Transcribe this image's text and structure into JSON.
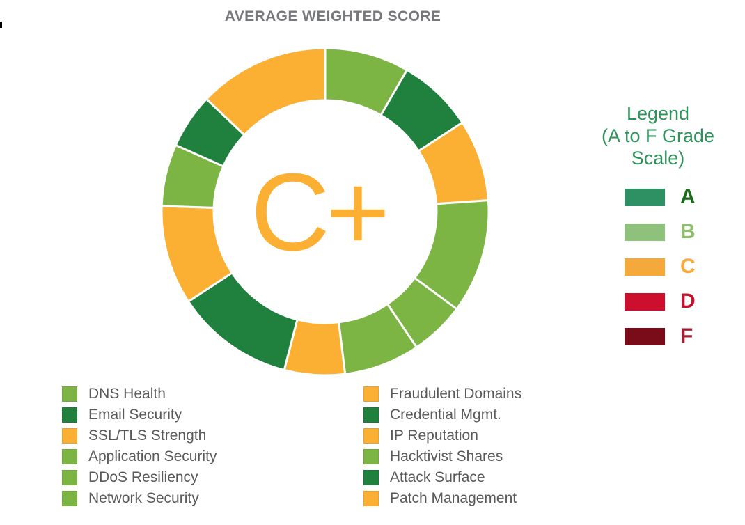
{
  "title": "AVERAGE WEIGHTED SCORE",
  "legend": {
    "title_line1": "Legend",
    "title_line2": "(A to F Grade Scale)",
    "items": [
      {
        "grade": "A",
        "swatch_color": "#2E9163",
        "letter_color": "#1B691B"
      },
      {
        "grade": "B",
        "swatch_color": "#8EC17B",
        "letter_color": "#8FBF6E"
      },
      {
        "grade": "C",
        "swatch_color": "#F6A93B",
        "letter_color": "#F9A93C"
      },
      {
        "grade": "D",
        "swatch_color": "#CE0E2D",
        "letter_color": "#C8102E"
      },
      {
        "grade": "F",
        "swatch_color": "#7A0C19",
        "letter_color": "#A51C30"
      }
    ]
  },
  "chart_data": {
    "type": "pie",
    "variant": "donut",
    "title": "AVERAGE WEIGHTED SCORE",
    "center_label": "C+",
    "center_label_color": "#FBB034",
    "legend_position": "right",
    "start_angle_deg": 0,
    "geometry": {
      "size": 470,
      "outer_radius": 235,
      "inner_radius": 160,
      "gap_stroke": "#FFFFFF",
      "gap_width": 3
    },
    "palette": {
      "light_green": "#7CB544",
      "dark_green": "#20813F",
      "orange": "#FBB034"
    },
    "segments": [
      {
        "label": "DNS Health",
        "grade": "B",
        "color": "#7CB544",
        "angle_deg": 30
      },
      {
        "label": "Email Security",
        "grade": "A",
        "color": "#20813F",
        "angle_deg": 27
      },
      {
        "label": "SSL/TLS Strength",
        "grade": "C",
        "color": "#FBB034",
        "angle_deg": 29
      },
      {
        "label": "Application Security",
        "grade": "B",
        "color": "#7CB544",
        "angle_deg": 40.5
      },
      {
        "label": "DDoS Resiliency",
        "grade": "B",
        "color": "#7CB544",
        "angle_deg": 19.5
      },
      {
        "label": "Network Security",
        "grade": "B",
        "color": "#7CB544",
        "angle_deg": 27
      },
      {
        "label": "Fraudulent Domains",
        "grade": "C",
        "color": "#FBB034",
        "angle_deg": 21.5
      },
      {
        "label": "Credential Mgmt.",
        "grade": "A",
        "color": "#20813F",
        "angle_deg": 42.2
      },
      {
        "label": "IP Reputation",
        "grade": "C",
        "color": "#FBB034",
        "angle_deg": 35.3
      },
      {
        "label": "Hacktivist Shares",
        "grade": "B",
        "color": "#7CB544",
        "angle_deg": 22
      },
      {
        "label": "Attack Surface",
        "grade": "A",
        "color": "#20813F",
        "angle_deg": 19.5
      },
      {
        "label": "Patch Management",
        "grade": "C",
        "color": "#FBB034",
        "angle_deg": 46.5
      }
    ]
  },
  "categories": {
    "left": [
      {
        "label": "DNS Health",
        "color": "#7CB544"
      },
      {
        "label": "Email Security",
        "color": "#20813F"
      },
      {
        "label": "SSL/TLS Strength",
        "color": "#FBB034"
      },
      {
        "label": "Application Security",
        "color": "#7CB544"
      },
      {
        "label": "DDoS Resiliency",
        "color": "#7CB544"
      },
      {
        "label": "Network Security",
        "color": "#7CB544"
      }
    ],
    "right": [
      {
        "label": "Fraudulent Domains",
        "color": "#FBB034"
      },
      {
        "label": "Credential Mgmt.",
        "color": "#20813F"
      },
      {
        "label": "IP Reputation",
        "color": "#FBB034"
      },
      {
        "label": "Hacktivist Shares",
        "color": "#7CB544"
      },
      {
        "label": "Attack Surface",
        "color": "#20813F"
      },
      {
        "label": "Patch Management",
        "color": "#FBB034"
      }
    ]
  }
}
